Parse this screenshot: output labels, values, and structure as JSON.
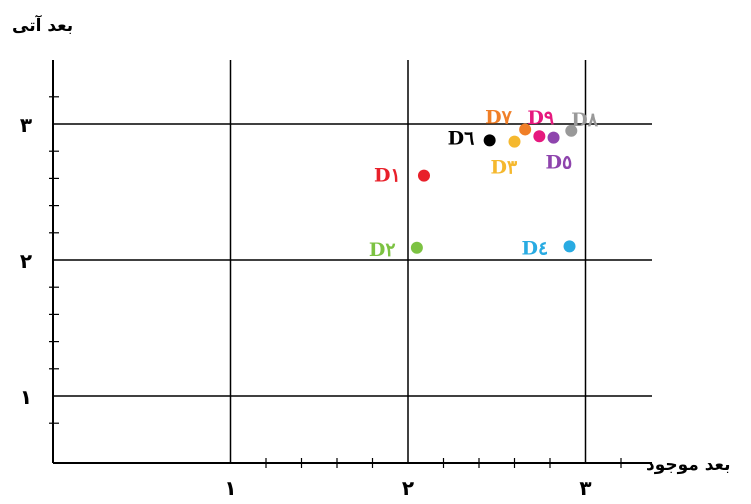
{
  "chart_data": {
    "type": "scatter",
    "xlabel": "بعد موجود",
    "ylabel": "بعد آتی",
    "xlim": [
      0,
      3.4
    ],
    "ylim": [
      0.5,
      3.5
    ],
    "grid": true,
    "x_ticks": [
      {
        "value": 1,
        "label": "۱"
      },
      {
        "value": 2,
        "label": "۲"
      },
      {
        "value": 3,
        "label": "۳"
      }
    ],
    "y_ticks": [
      {
        "value": 1,
        "label": "۱"
      },
      {
        "value": 2,
        "label": "۲"
      },
      {
        "value": 3,
        "label": "۳"
      }
    ],
    "points": [
      {
        "label": "D۱",
        "x": 2.09,
        "y": 2.62,
        "color": "#e8202a"
      },
      {
        "label": "D۲",
        "x": 2.05,
        "y": 2.09,
        "color": "#7cc242"
      },
      {
        "label": "D۳",
        "x": 2.6,
        "y": 2.87,
        "color": "#f5b82e"
      },
      {
        "label": "D٤",
        "x": 2.91,
        "y": 2.1,
        "color": "#29abe2"
      },
      {
        "label": "D٥",
        "x": 2.82,
        "y": 2.9,
        "color": "#8e44ad"
      },
      {
        "label": "D٦",
        "x": 2.46,
        "y": 2.88,
        "color": "#000000"
      },
      {
        "label": "D٧",
        "x": 2.66,
        "y": 2.96,
        "color": "#f07f28"
      },
      {
        "label": "D٨",
        "x": 2.92,
        "y": 2.95,
        "color": "#999999"
      },
      {
        "label": "D٩",
        "x": 2.74,
        "y": 2.91,
        "color": "#e6197e"
      }
    ]
  }
}
